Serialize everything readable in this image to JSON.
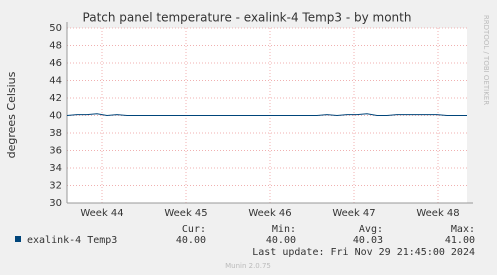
{
  "chart_data": {
    "type": "line",
    "title": "Patch panel temperature - exalink-4 Temp3 - by month",
    "y_label": "degrees Celsius",
    "side_text": "RRDTOOL / TOBI OETIKER",
    "x": [
      0,
      1,
      2,
      3,
      4,
      5,
      6,
      7,
      8,
      9,
      10,
      11,
      12,
      13,
      14,
      15,
      16,
      17,
      18,
      19,
      20,
      21,
      22,
      23,
      24,
      25,
      26,
      27,
      28,
      29,
      30,
      31,
      32,
      33,
      34,
      35,
      36,
      37,
      38,
      39,
      40
    ],
    "series": [
      {
        "name": "exalink-4 Temp3",
        "color": "#00457a",
        "values": [
          40,
          40.1,
          40.1,
          40.2,
          40,
          40.1,
          40,
          40,
          40,
          40,
          40,
          40,
          40,
          40,
          40,
          40,
          40,
          40,
          40,
          40,
          40,
          40,
          40,
          40,
          40,
          40,
          40.1,
          40,
          40.1,
          40.1,
          40.2,
          40,
          40,
          40.1,
          40.1,
          40.1,
          40.1,
          40.1,
          40,
          40,
          40
        ]
      }
    ],
    "xlim": [
      0,
      40
    ],
    "xticks": [
      {
        "value": 3.5,
        "label": "Week 44"
      },
      {
        "value": 11.9,
        "label": "Week 45"
      },
      {
        "value": 20.3,
        "label": "Week 46"
      },
      {
        "value": 28.7,
        "label": "Week 47"
      },
      {
        "value": 37.1,
        "label": "Week 48"
      }
    ],
    "ylim": [
      30,
      50
    ],
    "yticks": [
      30,
      32,
      34,
      36,
      38,
      40,
      42,
      44,
      46,
      48,
      50
    ],
    "grid": true,
    "legend_table": {
      "headers": [
        "Cur:",
        "Min:",
        "Avg:",
        "Max:"
      ],
      "values": [
        "40.00",
        "40.00",
        "40.03",
        "41.00"
      ]
    },
    "last_update": "Last update: Fri Nov 29 21:45:00 2024",
    "footer": "Munin 2.0.75"
  }
}
